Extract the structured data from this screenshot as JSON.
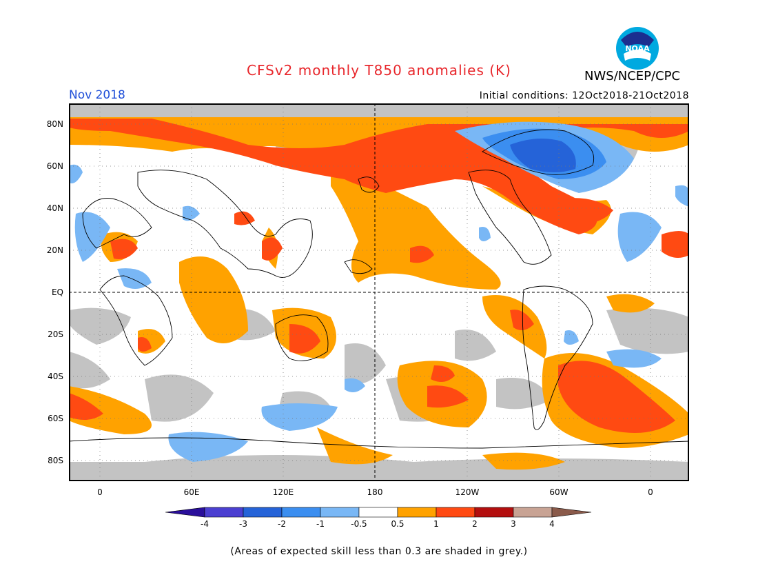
{
  "title": "CFSv2 monthly T850 anomalies (K)",
  "org": "NWS/NCEP/CPC",
  "logo_text": "NOAA",
  "period": "Nov 2018",
  "initial_conditions": "Initial conditions: 12Oct2018-21Oct2018",
  "lat_labels": [
    "80N",
    "60N",
    "40N",
    "20N",
    "EQ",
    "20S",
    "40S",
    "60S",
    "80S"
  ],
  "lon_labels": [
    "0",
    "60E",
    "120E",
    "180",
    "120W",
    "60W",
    "0"
  ],
  "colorbar": {
    "labels": [
      "-4",
      "-3",
      "-2",
      "-1",
      "-0.5",
      "0.5",
      "1",
      "2",
      "3",
      "4"
    ],
    "colors": [
      "#2a0f9b",
      "#4b3fd1",
      "#2563d8",
      "#3b8ef0",
      "#79b7f5",
      "#ffffff",
      "#ffa200",
      "#ff4a12",
      "#b30f0f",
      "#c8a394",
      "#8a5a4a"
    ]
  },
  "colors": {
    "title": "#e8262b",
    "period": "#1f4fd8",
    "grey_low_skill": "#c3c3c3",
    "orange": "#ffa200",
    "red": "#ff4a12",
    "light_blue": "#79b7f5",
    "blue": "#3b8ef0",
    "mid_blue": "#2563d8"
  },
  "note": "(Areas of expected skill less than 0.3 are shaded in grey.)"
}
